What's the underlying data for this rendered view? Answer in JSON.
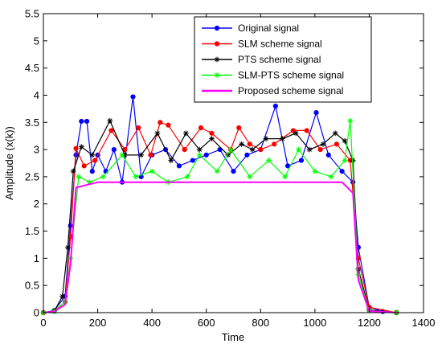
{
  "chart_data": {
    "type": "line",
    "title": "",
    "xlabel": "Time",
    "ylabel": "Amplitude (x(k))",
    "xlim": [
      0,
      1400
    ],
    "ylim": [
      0,
      5.5
    ],
    "xticks": [
      0,
      200,
      400,
      600,
      800,
      1000,
      1200,
      1400
    ],
    "yticks": [
      0,
      0.5,
      1,
      1.5,
      2,
      2.5,
      3,
      3.5,
      4,
      4.5,
      5,
      5.5
    ],
    "xtick_labels": [
      "0",
      "200",
      "400",
      "600",
      "800",
      "1000",
      "1200",
      "1400"
    ],
    "ytick_labels": [
      "0",
      "0.5",
      "1",
      "1.5",
      "2",
      "2.5",
      "3",
      "3.5",
      "4",
      "4.5",
      "5",
      "5.5"
    ],
    "grid": false,
    "legend_position": "top-right",
    "series": [
      {
        "name": "Original signal",
        "color": "#0000ff",
        "marker": "dot",
        "x": [
          0,
          40,
          80,
          100,
          120,
          140,
          160,
          180,
          200,
          230,
          260,
          290,
          330,
          360,
          400,
          450,
          500,
          550,
          600,
          650,
          700,
          750,
          800,
          855,
          900,
          950,
          1005,
          1050,
          1100,
          1140,
          1160,
          1200,
          1250,
          1300
        ],
        "y": [
          0,
          0.04,
          0.3,
          1.6,
          2.9,
          3.52,
          3.52,
          2.6,
          2.9,
          2.6,
          3.0,
          2.4,
          3.97,
          2.5,
          2.9,
          3.0,
          2.7,
          2.8,
          2.9,
          3.0,
          2.6,
          2.9,
          3.0,
          3.8,
          2.7,
          2.8,
          3.68,
          2.9,
          2.6,
          2.4,
          1.2,
          0.1,
          0.02,
          0
        ]
      },
      {
        "name": "SLM scheme signal",
        "color": "#ff0000",
        "marker": "dot",
        "x": [
          0,
          40,
          80,
          100,
          120,
          150,
          190,
          250,
          300,
          350,
          395,
          430,
          460,
          520,
          580,
          620,
          690,
          720,
          760,
          800,
          850,
          920,
          970,
          1020,
          1080,
          1130,
          1160,
          1200,
          1300
        ],
        "y": [
          0,
          0.03,
          0.2,
          1.4,
          3.02,
          2.7,
          2.8,
          3.35,
          3.0,
          3.4,
          2.9,
          3.5,
          3.45,
          3.0,
          3.4,
          3.3,
          3.0,
          3.4,
          3.1,
          3.0,
          3.1,
          3.35,
          3.35,
          3.0,
          3.1,
          2.8,
          1.0,
          0.1,
          0
        ]
      },
      {
        "name": "PTS scheme signal",
        "color": "#000000",
        "marker": "star",
        "x": [
          0,
          40,
          70,
          90,
          110,
          140,
          180,
          245,
          300,
          360,
          420,
          470,
          525,
          575,
          620,
          680,
          730,
          770,
          820,
          880,
          930,
          980,
          1030,
          1075,
          1110,
          1140,
          1160,
          1200,
          1300
        ],
        "y": [
          0,
          0.03,
          0.3,
          1.2,
          2.6,
          3.05,
          2.9,
          3.53,
          2.9,
          2.9,
          3.3,
          2.8,
          3.3,
          3.0,
          3.2,
          2.9,
          3.1,
          3.0,
          3.2,
          3.2,
          3.3,
          3.0,
          3.1,
          3.3,
          3.16,
          2.8,
          0.8,
          0.05,
          0
        ]
      },
      {
        "name": "SLM-PTS scheme signal",
        "color": "#00ff00",
        "marker": "star",
        "x": [
          0,
          40,
          80,
          100,
          130,
          170,
          220,
          290,
          340,
          400,
          460,
          530,
          575,
          640,
          690,
          760,
          830,
          890,
          940,
          1000,
          1060,
          1110,
          1130,
          1160,
          1200,
          1300
        ],
        "y": [
          0,
          0.02,
          0.2,
          1.0,
          2.5,
          2.4,
          2.5,
          2.9,
          2.5,
          2.6,
          2.4,
          2.5,
          2.9,
          2.6,
          3.0,
          2.5,
          2.8,
          2.5,
          3.0,
          2.6,
          2.5,
          2.8,
          3.53,
          0.7,
          0.04,
          0
        ]
      },
      {
        "name": "Proposed scheme signal",
        "color": "#ff00ff",
        "marker": "none",
        "x": [
          0,
          40,
          80,
          100,
          120,
          200,
          300,
          400,
          500,
          600,
          700,
          800,
          900,
          1000,
          1100,
          1140,
          1160,
          1200,
          1300
        ],
        "y": [
          0,
          0.02,
          0.15,
          0.9,
          2.3,
          2.4,
          2.4,
          2.4,
          2.4,
          2.4,
          2.4,
          2.4,
          2.4,
          2.4,
          2.4,
          2.2,
          0.6,
          0.03,
          0
        ]
      }
    ]
  }
}
